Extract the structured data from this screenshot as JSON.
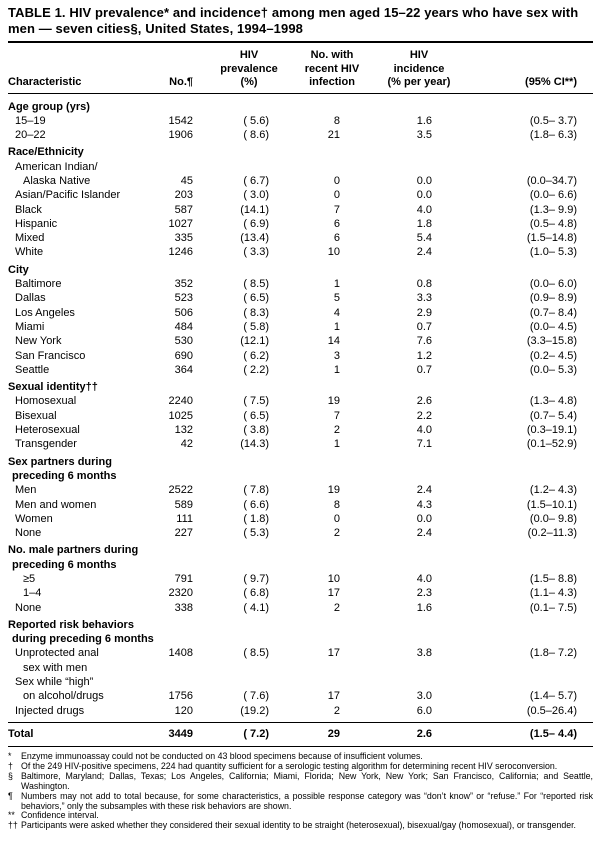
{
  "title": "TABLE 1. HIV prevalence* and incidence† among men aged 15–22 years who have sex with men — seven cities§, United States, 1994–1998",
  "table": {
    "header": {
      "characteristic": "Characteristic",
      "no": "No.¶",
      "prevalence_l1": "HIV",
      "prevalence_l2": "prevalence",
      "prevalence_l3": "(%)",
      "recent_l1": "No. with",
      "recent_l2": "recent HIV",
      "recent_l3": "infection",
      "incidence_l1": "HIV",
      "incidence_l2": "incidence",
      "incidence_l3": "(% per year)",
      "ci": "(95% CI**)"
    },
    "rows": [
      {
        "type": "section",
        "label": "Age group (yrs)"
      },
      {
        "type": "data",
        "indent": 1,
        "label": "15–19",
        "no": "1542",
        "prev": "( 5.6)",
        "recent": "8",
        "inc": "1.6",
        "ci": "(0.5– 3.7)"
      },
      {
        "type": "data",
        "indent": 1,
        "label": "20–22",
        "no": "1906",
        "prev": "( 8.6)",
        "recent": "21",
        "inc": "3.5",
        "ci": "(1.8– 6.3)"
      },
      {
        "type": "section",
        "label": "Race/Ethnicity"
      },
      {
        "type": "label-only",
        "indent": 1,
        "label": "American Indian/"
      },
      {
        "type": "data",
        "indent": 2,
        "label": "Alaska Native",
        "no": "45",
        "prev": "( 6.7)",
        "recent": "0",
        "inc": "0.0",
        "ci": "(0.0–34.7)"
      },
      {
        "type": "data",
        "indent": 1,
        "label": "Asian/Pacific Islander",
        "no": "203",
        "prev": "( 3.0)",
        "recent": "0",
        "inc": "0.0",
        "ci": "(0.0– 6.6)"
      },
      {
        "type": "data",
        "indent": 1,
        "label": "Black",
        "no": "587",
        "prev": "(14.1)",
        "recent": "7",
        "inc": "4.0",
        "ci": "(1.3– 9.9)"
      },
      {
        "type": "data",
        "indent": 1,
        "label": "Hispanic",
        "no": "1027",
        "prev": "( 6.9)",
        "recent": "6",
        "inc": "1.8",
        "ci": "(0.5– 4.8)"
      },
      {
        "type": "data",
        "indent": 1,
        "label": "Mixed",
        "no": "335",
        "prev": "(13.4)",
        "recent": "6",
        "inc": "5.4",
        "ci": "(1.5–14.8)"
      },
      {
        "type": "data",
        "indent": 1,
        "label": "White",
        "no": "1246",
        "prev": "( 3.3)",
        "recent": "10",
        "inc": "2.4",
        "ci": "(1.0– 5.3)"
      },
      {
        "type": "section",
        "label": "City"
      },
      {
        "type": "data",
        "indent": 1,
        "label": "Baltimore",
        "no": "352",
        "prev": "( 8.5)",
        "recent": "1",
        "inc": "0.8",
        "ci": "(0.0– 6.0)"
      },
      {
        "type": "data",
        "indent": 1,
        "label": "Dallas",
        "no": "523",
        "prev": "( 6.5)",
        "recent": "5",
        "inc": "3.3",
        "ci": "(0.9– 8.9)"
      },
      {
        "type": "data",
        "indent": 1,
        "label": "Los Angeles",
        "no": "506",
        "prev": "( 8.3)",
        "recent": "4",
        "inc": "2.9",
        "ci": "(0.7– 8.4)"
      },
      {
        "type": "data",
        "indent": 1,
        "label": "Miami",
        "no": "484",
        "prev": "( 5.8)",
        "recent": "1",
        "inc": "0.7",
        "ci": "(0.0– 4.5)"
      },
      {
        "type": "data",
        "indent": 1,
        "label": "New York",
        "no": "530",
        "prev": "(12.1)",
        "recent": "14",
        "inc": "7.6",
        "ci": "(3.3–15.8)"
      },
      {
        "type": "data",
        "indent": 1,
        "label": "San Francisco",
        "no": "690",
        "prev": "( 6.2)",
        "recent": "3",
        "inc": "1.2",
        "ci": "(0.2– 4.5)"
      },
      {
        "type": "data",
        "indent": 1,
        "label": "Seattle",
        "no": "364",
        "prev": "( 2.2)",
        "recent": "1",
        "inc": "0.7",
        "ci": "(0.0– 5.3)"
      },
      {
        "type": "section",
        "label": "Sexual identity††"
      },
      {
        "type": "data",
        "indent": 1,
        "label": "Homosexual",
        "no": "2240",
        "prev": "( 7.5)",
        "recent": "19",
        "inc": "2.6",
        "ci": "(1.3– 4.8)"
      },
      {
        "type": "data",
        "indent": 1,
        "label": "Bisexual",
        "no": "1025",
        "prev": "( 6.5)",
        "recent": "7",
        "inc": "2.2",
        "ci": "(0.7– 5.4)"
      },
      {
        "type": "data",
        "indent": 1,
        "label": "Heterosexual",
        "no": "132",
        "prev": "( 3.8)",
        "recent": "2",
        "inc": "4.0",
        "ci": "(0.3–19.1)"
      },
      {
        "type": "data",
        "indent": 1,
        "label": "Transgender",
        "no": "42",
        "prev": "(14.3)",
        "recent": "1",
        "inc": "7.1",
        "ci": "(0.1–52.9)"
      },
      {
        "type": "section",
        "label": "Sex partners during"
      },
      {
        "type": "section-cont",
        "label": "preceding 6 months"
      },
      {
        "type": "data",
        "indent": 1,
        "label": "Men",
        "no": "2522",
        "prev": "( 7.8)",
        "recent": "19",
        "inc": "2.4",
        "ci": "(1.2– 4.3)"
      },
      {
        "type": "data",
        "indent": 1,
        "label": "Men and women",
        "no": "589",
        "prev": "( 6.6)",
        "recent": "8",
        "inc": "4.3",
        "ci": "(1.5–10.1)"
      },
      {
        "type": "data",
        "indent": 1,
        "label": "Women",
        "no": "111",
        "prev": "( 1.8)",
        "recent": "0",
        "inc": "0.0",
        "ci": "(0.0– 9.8)"
      },
      {
        "type": "data",
        "indent": 1,
        "label": "None",
        "no": "227",
        "prev": "( 5.3)",
        "recent": "2",
        "inc": "2.4",
        "ci": "(0.2–11.3)"
      },
      {
        "type": "section",
        "label": "No. male partners during"
      },
      {
        "type": "section-cont",
        "label": "preceding 6 months"
      },
      {
        "type": "data",
        "indent": 2,
        "label": "≥5",
        "no": "791",
        "prev": "( 9.7)",
        "recent": "10",
        "inc": "4.0",
        "ci": "(1.5– 8.8)"
      },
      {
        "type": "data",
        "indent": 2,
        "label": "1–4",
        "no": "2320",
        "prev": "( 6.8)",
        "recent": "17",
        "inc": "2.3",
        "ci": "(1.1– 4.3)"
      },
      {
        "type": "data",
        "indent": 1,
        "label": "None",
        "no": "338",
        "prev": "( 4.1)",
        "recent": "2",
        "inc": "1.6",
        "ci": "(0.1– 7.5)"
      },
      {
        "type": "section",
        "label": "Reported risk behaviors"
      },
      {
        "type": "section-cont",
        "label": "during preceding 6 months"
      },
      {
        "type": "data",
        "indent": 1,
        "label": "Unprotected anal",
        "no": "1408",
        "prev": "( 8.5)",
        "recent": "17",
        "inc": "3.8",
        "ci": "(1.8– 7.2)"
      },
      {
        "type": "label-only",
        "indent": 2,
        "label": "sex with men"
      },
      {
        "type": "label-only",
        "indent": 1,
        "label": "Sex while “high”"
      },
      {
        "type": "data",
        "indent": 2,
        "label": "on alcohol/drugs",
        "no": "1756",
        "prev": "( 7.6)",
        "recent": "17",
        "inc": "3.0",
        "ci": "(1.4– 5.7)"
      },
      {
        "type": "data",
        "indent": 1,
        "label": "Injected drugs",
        "no": "120",
        "prev": "(19.2)",
        "recent": "2",
        "inc": "6.0",
        "ci": "(0.5–26.4)"
      }
    ],
    "total": {
      "label": "Total",
      "no": "3449",
      "prev": "( 7.2)",
      "recent": "29",
      "inc": "2.6",
      "ci": "(1.5– 4.4)"
    }
  },
  "footnotes": [
    {
      "marker": "*",
      "text": "Enzyme immunoassay could not be conducted on 43 blood specimens because of insufficient volumes."
    },
    {
      "marker": "†",
      "text": "Of the 249 HIV-positive specimens, 224 had quantity sufficient for a serologic testing algorithm for determining recent HIV seroconversion."
    },
    {
      "marker": "§",
      "text": "Baltimore, Maryland; Dallas, Texas; Los Angeles, California; Miami, Florida; New York, New York; San Francisco, California; and Seattle, Washington."
    },
    {
      "marker": "¶",
      "text": "Numbers may not add to total because, for some characteristics, a possible response category was “don’t know” or “refuse.” For “reported risk behaviors,” only the subsamples with these risk behaviors are shown."
    },
    {
      "marker": "**",
      "text": "Confidence interval."
    },
    {
      "marker": "††",
      "text": "Participants were asked whether they considered their sexual identity to be straight (heterosexual), bisexual/gay (homosexual), or transgender."
    }
  ]
}
